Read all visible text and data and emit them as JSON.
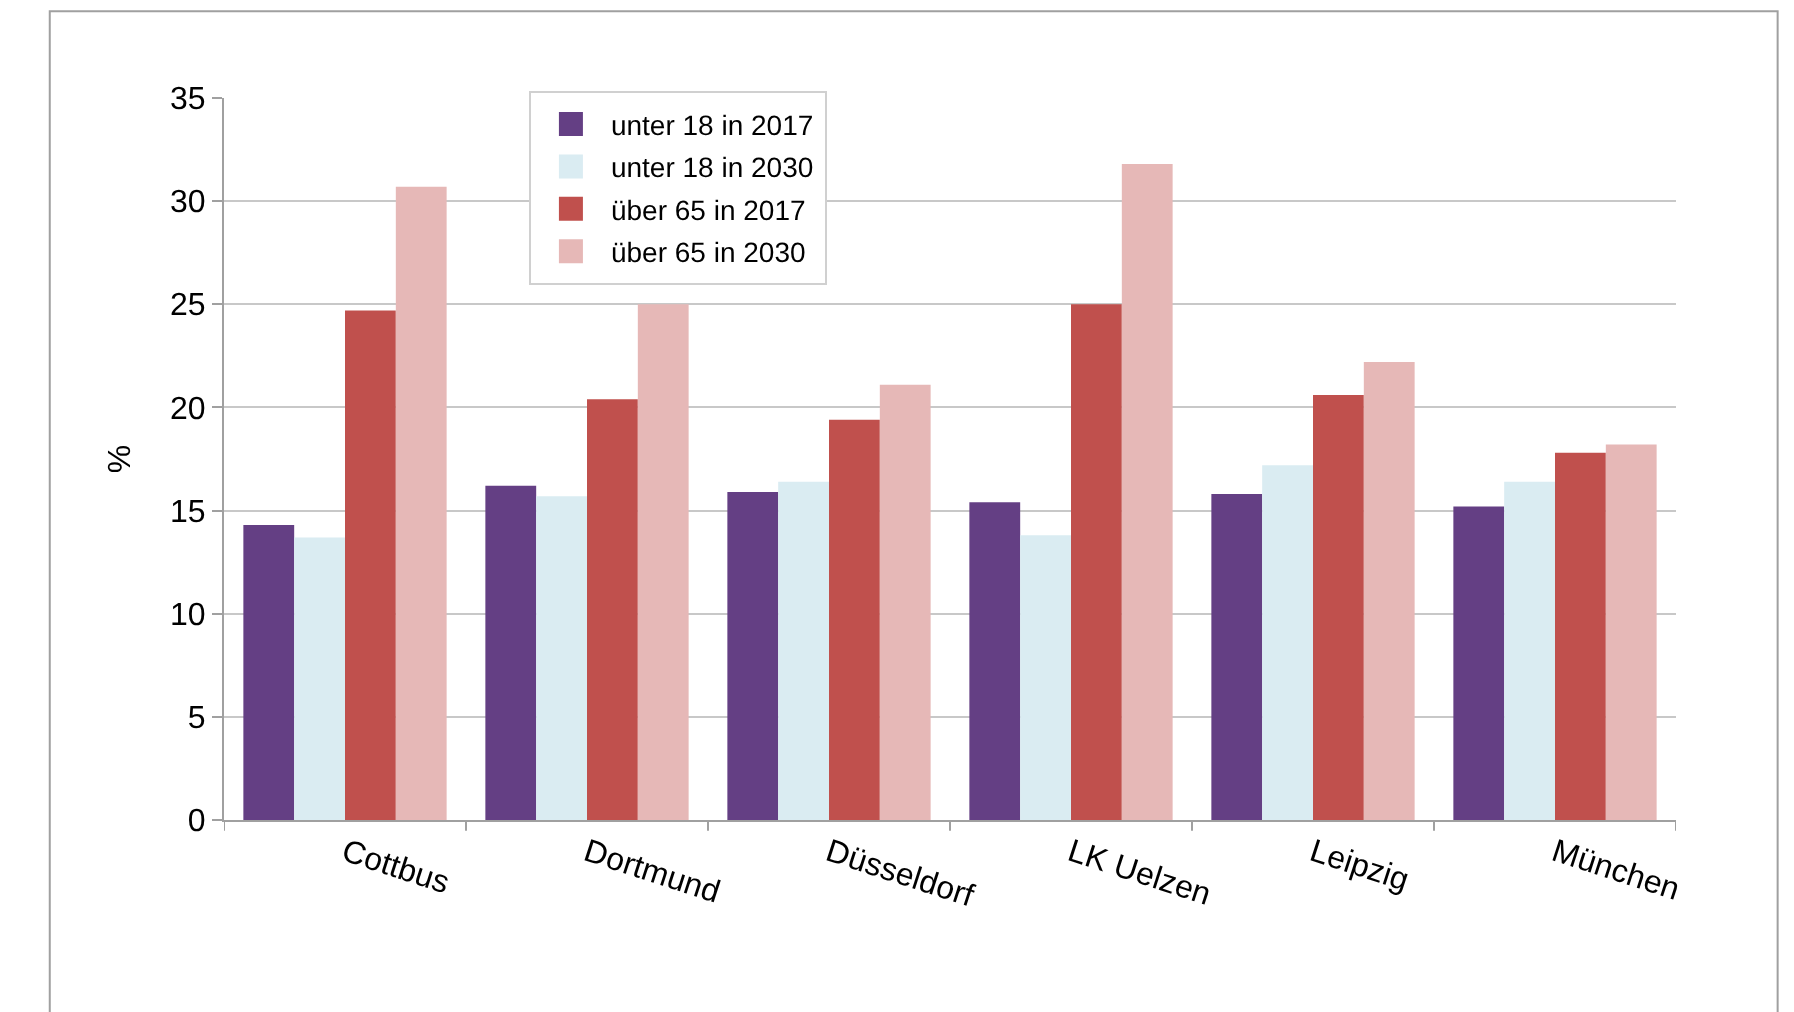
{
  "chart_data": {
    "type": "bar",
    "ylabel": "%",
    "categories": [
      "Cottbus",
      "Dortmund",
      "Düsseldorf",
      "LK Uelzen",
      "Leipzig",
      "München"
    ],
    "series": [
      {
        "name": "unter 18 in 2017",
        "color": "#643f84",
        "values": [
          14.3,
          16.2,
          15.9,
          15.4,
          15.8,
          15.2
        ]
      },
      {
        "name": "unter 18 in 2030",
        "color": "#daecf2",
        "values": [
          13.7,
          15.7,
          16.4,
          13.8,
          17.2,
          16.4
        ]
      },
      {
        "name": "über 65 in 2017",
        "color": "#c0504d",
        "values": [
          24.7,
          20.4,
          19.4,
          25.0,
          20.6,
          17.8
        ]
      },
      {
        "name": "über 65 in 2030",
        "color": "#e6b8b7",
        "values": [
          30.7,
          25.0,
          21.1,
          31.8,
          22.2,
          18.2
        ]
      }
    ],
    "ylim": [
      0,
      35
    ],
    "yticks": [
      0,
      5,
      10,
      15,
      20,
      25,
      30,
      35
    ],
    "grid": "y",
    "legend": "top left"
  }
}
